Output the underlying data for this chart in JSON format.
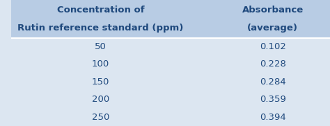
{
  "header_col1_line1": "Concentration of",
  "header_col1_line2": "Rutin reference standard (ppm)",
  "header_col2_line1": "Absorbance",
  "header_col2_line2": "(average)",
  "concentrations": [
    "50",
    "100",
    "150",
    "200",
    "250"
  ],
  "absorbances": [
    "0.102",
    "0.228",
    "0.284",
    "0.359",
    "0.394"
  ],
  "header_bg_color": "#b8cce4",
  "body_bg_color": "#dce6f1",
  "text_color": "#1F497D",
  "header_font_size": 9.5,
  "body_font_size": 9.5,
  "figsize": [
    4.74,
    1.82
  ],
  "dpi": 100
}
